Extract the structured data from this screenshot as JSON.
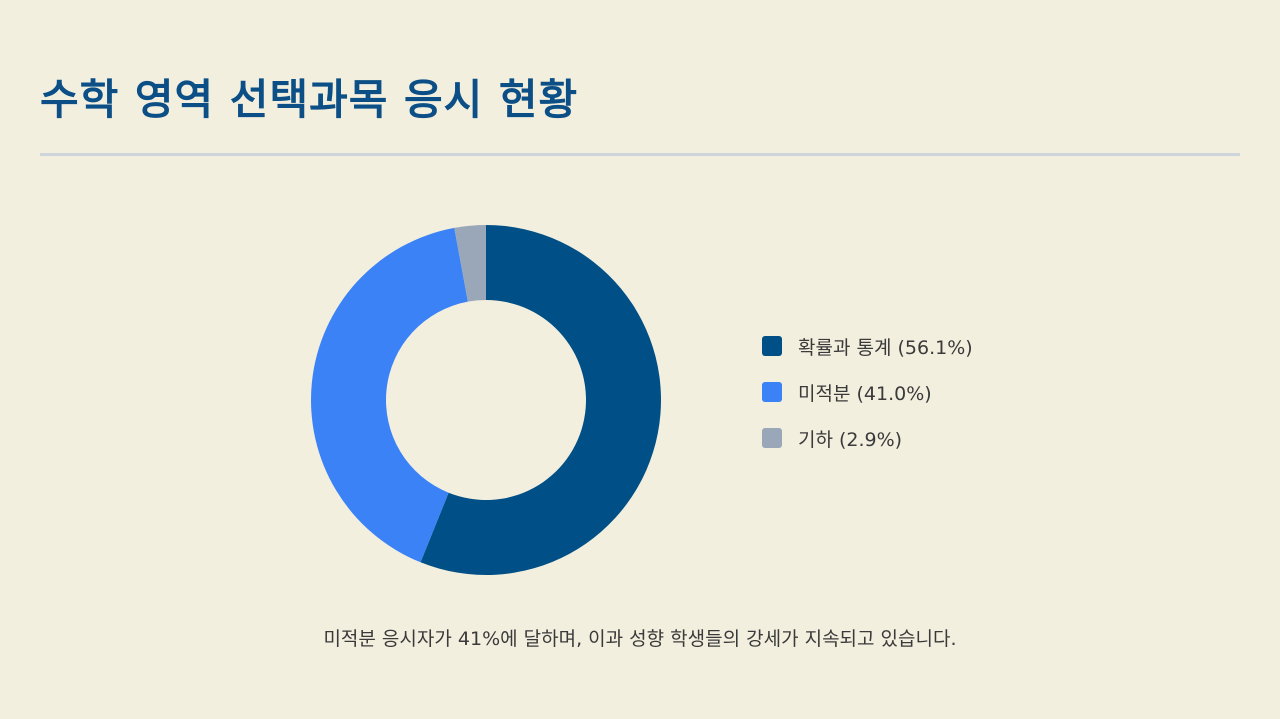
{
  "header": {
    "title": "수학 영역 선택과목 응시 현황"
  },
  "chart_data": {
    "type": "pie",
    "variant": "donut",
    "categories": [
      "확률과 통계",
      "미적분",
      "기하"
    ],
    "values": [
      56.1,
      41.0,
      2.9
    ],
    "unit": "%",
    "colors": [
      "#004f86",
      "#3b82f6",
      "#9aa7b9"
    ],
    "legend_labels": [
      "확률과 통계 (56.1%)",
      "미적분 (41.0%)",
      "기하 (2.9%)"
    ],
    "legend_placement": "right"
  },
  "caption": "미적분 응시자가 41%에 달하며, 이과 성향 학생들의 강세가 지속되고 있습니다."
}
